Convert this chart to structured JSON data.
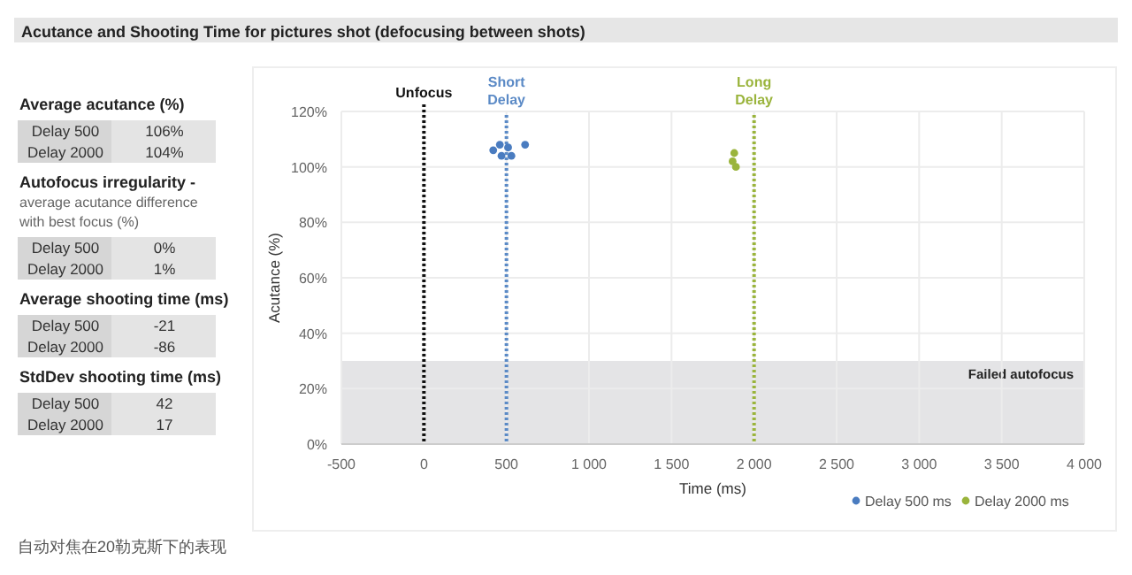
{
  "chart_data": [
    {
      "type": "other",
      "title": "Acutance and Shooting Time for pictures shot (defocusing between shots)",
      "annotations": [
        "Average acutance (%)",
        "Delay 500",
        "106%",
        "Delay 2000",
        "104%",
        "Autofocus irregularity -",
        "average acutance difference",
        "with best focus (%)",
        "Delay 500",
        "0%",
        "Delay 2000",
        "1%",
        "Average shooting time (ms)",
        "Delay 500",
        "-21",
        "Delay 2000",
        "-86",
        "StdDev shooting time (ms)",
        "Delay 500",
        "42",
        "Delay 2000",
        "17"
      ]
    },
    {
      "type": "scatter",
      "xlabel": "Time (ms)",
      "ylabel": "Acutance (%)",
      "xlim": [
        -500,
        4000
      ],
      "ylim": [
        0,
        120
      ],
      "xticks": [
        -500,
        0,
        500,
        {
          "value": 1000,
          "label": "1 000"
        },
        {
          "value": 1500,
          "label": "1 500"
        },
        {
          "value": 2000,
          "label": "2 000"
        },
        {
          "value": 2500,
          "label": "2 500"
        },
        {
          "value": 3000,
          "label": "3 000"
        },
        {
          "value": 3500,
          "label": "3 500"
        },
        {
          "value": 4000,
          "label": "4 000"
        }
      ],
      "yticks": [
        {
          "value": 0,
          "label": "0%"
        },
        {
          "value": 20,
          "label": "20%"
        },
        {
          "value": 40,
          "label": "40%"
        },
        {
          "value": 60,
          "label": "60%"
        },
        {
          "value": 80,
          "label": "80%"
        },
        {
          "value": 100,
          "label": "100%"
        },
        {
          "value": 120,
          "label": "120%"
        }
      ],
      "grid": true,
      "legend": "bottom right",
      "marker": "circle",
      "series": [
        {
          "name": "Delay 500 ms",
          "color": "#4a7cc0",
          "x": [
            420,
            460,
            470,
            510,
            530,
            613
          ],
          "values": [
            106,
            108,
            104,
            107,
            104,
            108
          ]
        },
        {
          "name": "Delay 2000 ms",
          "color": "#9ab43c",
          "x": [
            1880,
            1870,
            1890
          ],
          "values": [
            105,
            102,
            100
          ]
        }
      ],
      "ref_lines": [
        {
          "axis": "x",
          "value": 0,
          "label": "Unfocus",
          "color": "#111111",
          "line_style": "dotted"
        },
        {
          "axis": "x",
          "value": 500,
          "label": "Short Delay",
          "color": "#5b8ac6",
          "line_style": "dotted"
        },
        {
          "axis": "x",
          "value": 2000,
          "label": "Long Delay",
          "color": "#9ab43c",
          "line_style": "dotted"
        }
      ],
      "bands": [
        {
          "axis": "y",
          "from": 0,
          "to": 30,
          "label": "Failed autofocus",
          "color": "#e4e4e6"
        }
      ],
      "annotations": [
        "自动对焦在20勒克斯下的表现"
      ]
    }
  ]
}
